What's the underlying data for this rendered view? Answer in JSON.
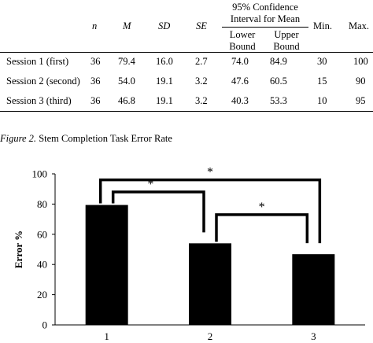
{
  "table": {
    "columns": {
      "n": "n",
      "m": "M",
      "sd": "SD",
      "se": "SE",
      "ci_title_line1": "95% Confidence",
      "ci_title_line2": "Interval for Mean",
      "lower_line1": "Lower",
      "lower_line2": "Bound",
      "upper_line1": "Upper",
      "upper_line2": "Bound",
      "min": "Min.",
      "max": "Max."
    },
    "rows": [
      {
        "label": "Session 1 (first)",
        "n": "36",
        "m": "79.4",
        "sd": "16.0",
        "se": "2.7",
        "lower": "74.0",
        "upper": "84.9",
        "min": "30",
        "max": "100"
      },
      {
        "label": "Session 2 (second)",
        "n": "36",
        "m": "54.0",
        "sd": "19.1",
        "se": "3.2",
        "lower": "47.6",
        "upper": "60.5",
        "min": "15",
        "max": "90"
      },
      {
        "label": "Session 3 (third)",
        "n": "36",
        "m": "46.8",
        "sd": "19.1",
        "se": "3.2",
        "lower": "40.3",
        "upper": "53.3",
        "min": "10",
        "max": "95"
      }
    ]
  },
  "caption": {
    "figure_label": "Figure 2.",
    "text": " Stem Completion Task Error Rate"
  },
  "chart_data": {
    "type": "bar",
    "categories": [
      "1",
      "2",
      "3"
    ],
    "values": [
      79.4,
      54.0,
      46.8
    ],
    "title": "",
    "xlabel": "",
    "ylabel": "Error %",
    "ylim": [
      0,
      100
    ],
    "yticks": [
      "0",
      "20",
      "40",
      "60",
      "80",
      "100"
    ],
    "bar_color": "#000000",
    "grid": false,
    "annotations": [
      "*",
      "*",
      "*"
    ]
  }
}
